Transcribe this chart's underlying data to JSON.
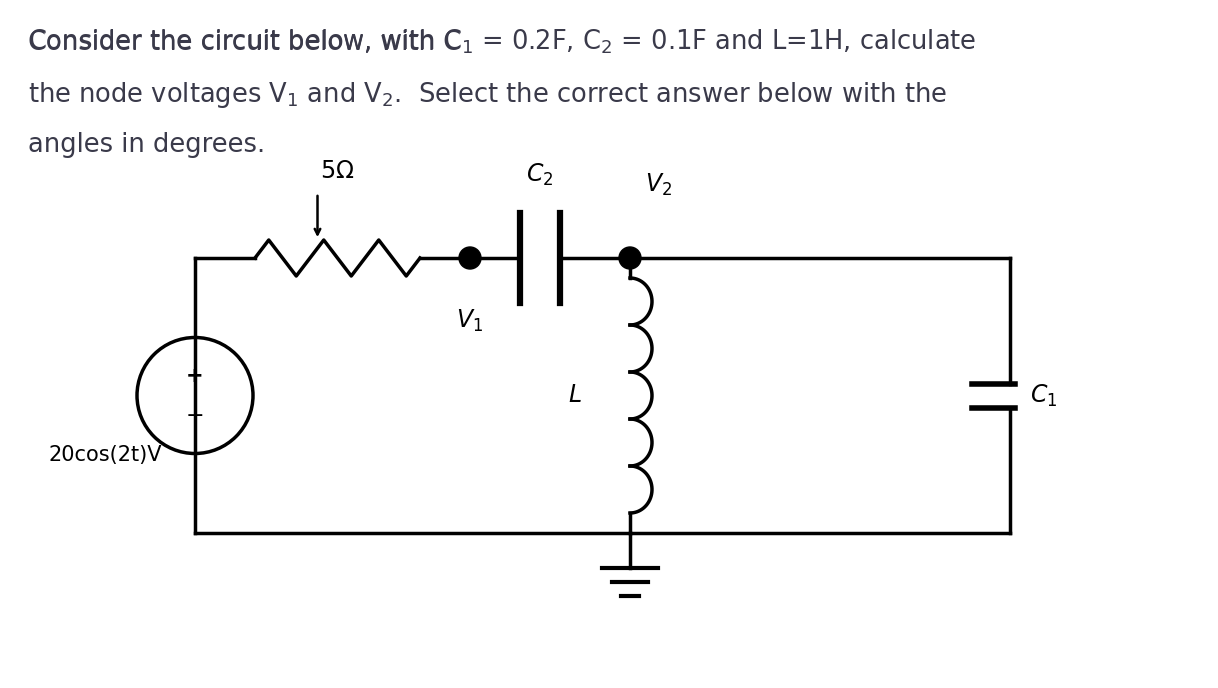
{
  "bg_color": "#ffffff",
  "text_color": "#3a3a4a",
  "circuit_color": "#000000",
  "resistor_label": "5Ω",
  "cap2_label": "C_2",
  "cap1_label": "C_1",
  "inductor_label": "L",
  "v1_label": "V_1",
  "v2_label": "V_2",
  "source_label": "20cos(2t)V",
  "title_line1": "Consider the circuit below, with C",
  "title_sub1": "1",
  "title_mid1": " = 0.2F, C",
  "title_sub2": "2",
  "title_mid2": " = 0.1F and L=1H, calculate",
  "title_line2": "the node voltages V",
  "title_sub3": "1",
  "title_mid3": " and V",
  "title_sub4": "2",
  "title_mid4": ".  Select the correct answer below with the",
  "title_line3": "angles in degrees."
}
